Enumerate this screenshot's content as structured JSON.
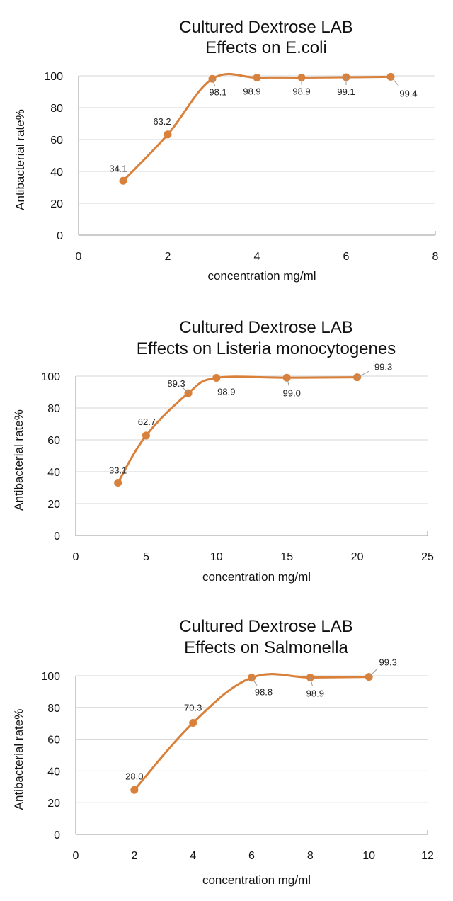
{
  "chart_data": [
    {
      "type": "line",
      "title": [
        "Cultured Dextrose LAB",
        "Effects on E.coli"
      ],
      "xlabel": "concentration mg/ml",
      "ylabel": "Antibacterial rate%",
      "xlim": [
        0,
        8
      ],
      "ylim": [
        0,
        100
      ],
      "xticks": [
        0,
        2,
        4,
        6,
        8
      ],
      "yticks": [
        0,
        20,
        40,
        60,
        80,
        100
      ],
      "grid": "horizontal",
      "color": "#D9803A",
      "series": [
        {
          "x": [
            1,
            2,
            3,
            4,
            5,
            6,
            7
          ],
          "y": [
            34.1,
            63.2,
            98.1,
            98.9,
            98.9,
            99.1,
            99.4
          ],
          "labels": [
            "34.1",
            "63.2",
            "98.1",
            "98.9",
            "98.9",
            "99.1",
            "99.4"
          ]
        }
      ]
    },
    {
      "type": "line",
      "title": [
        "Cultured Dextrose LAB",
        "Effects on Listeria monocytogenes"
      ],
      "xlabel": "concentration mg/ml",
      "ylabel": "Antibacterial rate%",
      "xlim": [
        0,
        25
      ],
      "ylim": [
        0,
        100
      ],
      "xticks": [
        0,
        5,
        10,
        15,
        20,
        25
      ],
      "yticks": [
        0,
        20,
        40,
        60,
        80,
        100
      ],
      "grid": "horizontal",
      "color": "#D9803A",
      "series": [
        {
          "x": [
            3,
            5,
            8,
            10,
            15,
            20
          ],
          "y": [
            33.1,
            62.7,
            89.3,
            98.9,
            99.0,
            99.3
          ],
          "labels": [
            "33.1",
            "62.7",
            "89.3",
            "98.9",
            "99.0",
            "99.3"
          ]
        }
      ]
    },
    {
      "type": "line",
      "title": [
        "Cultured Dextrose LAB",
        "Effects on Salmonella"
      ],
      "xlabel": "concentration mg/ml",
      "ylabel": "Antibacterial rate%",
      "xlim": [
        0,
        12
      ],
      "ylim": [
        0,
        100
      ],
      "xticks": [
        0,
        2,
        4,
        6,
        8,
        10,
        12
      ],
      "yticks": [
        0,
        20,
        40,
        60,
        80,
        100
      ],
      "grid": "horizontal",
      "color": "#D9803A",
      "series": [
        {
          "x": [
            2,
            4,
            6,
            8,
            10
          ],
          "y": [
            28.0,
            70.3,
            98.8,
            98.9,
            99.3
          ],
          "labels": [
            "28.0",
            "70.3",
            "98.8",
            "98.9",
            "99.3"
          ]
        }
      ]
    }
  ]
}
